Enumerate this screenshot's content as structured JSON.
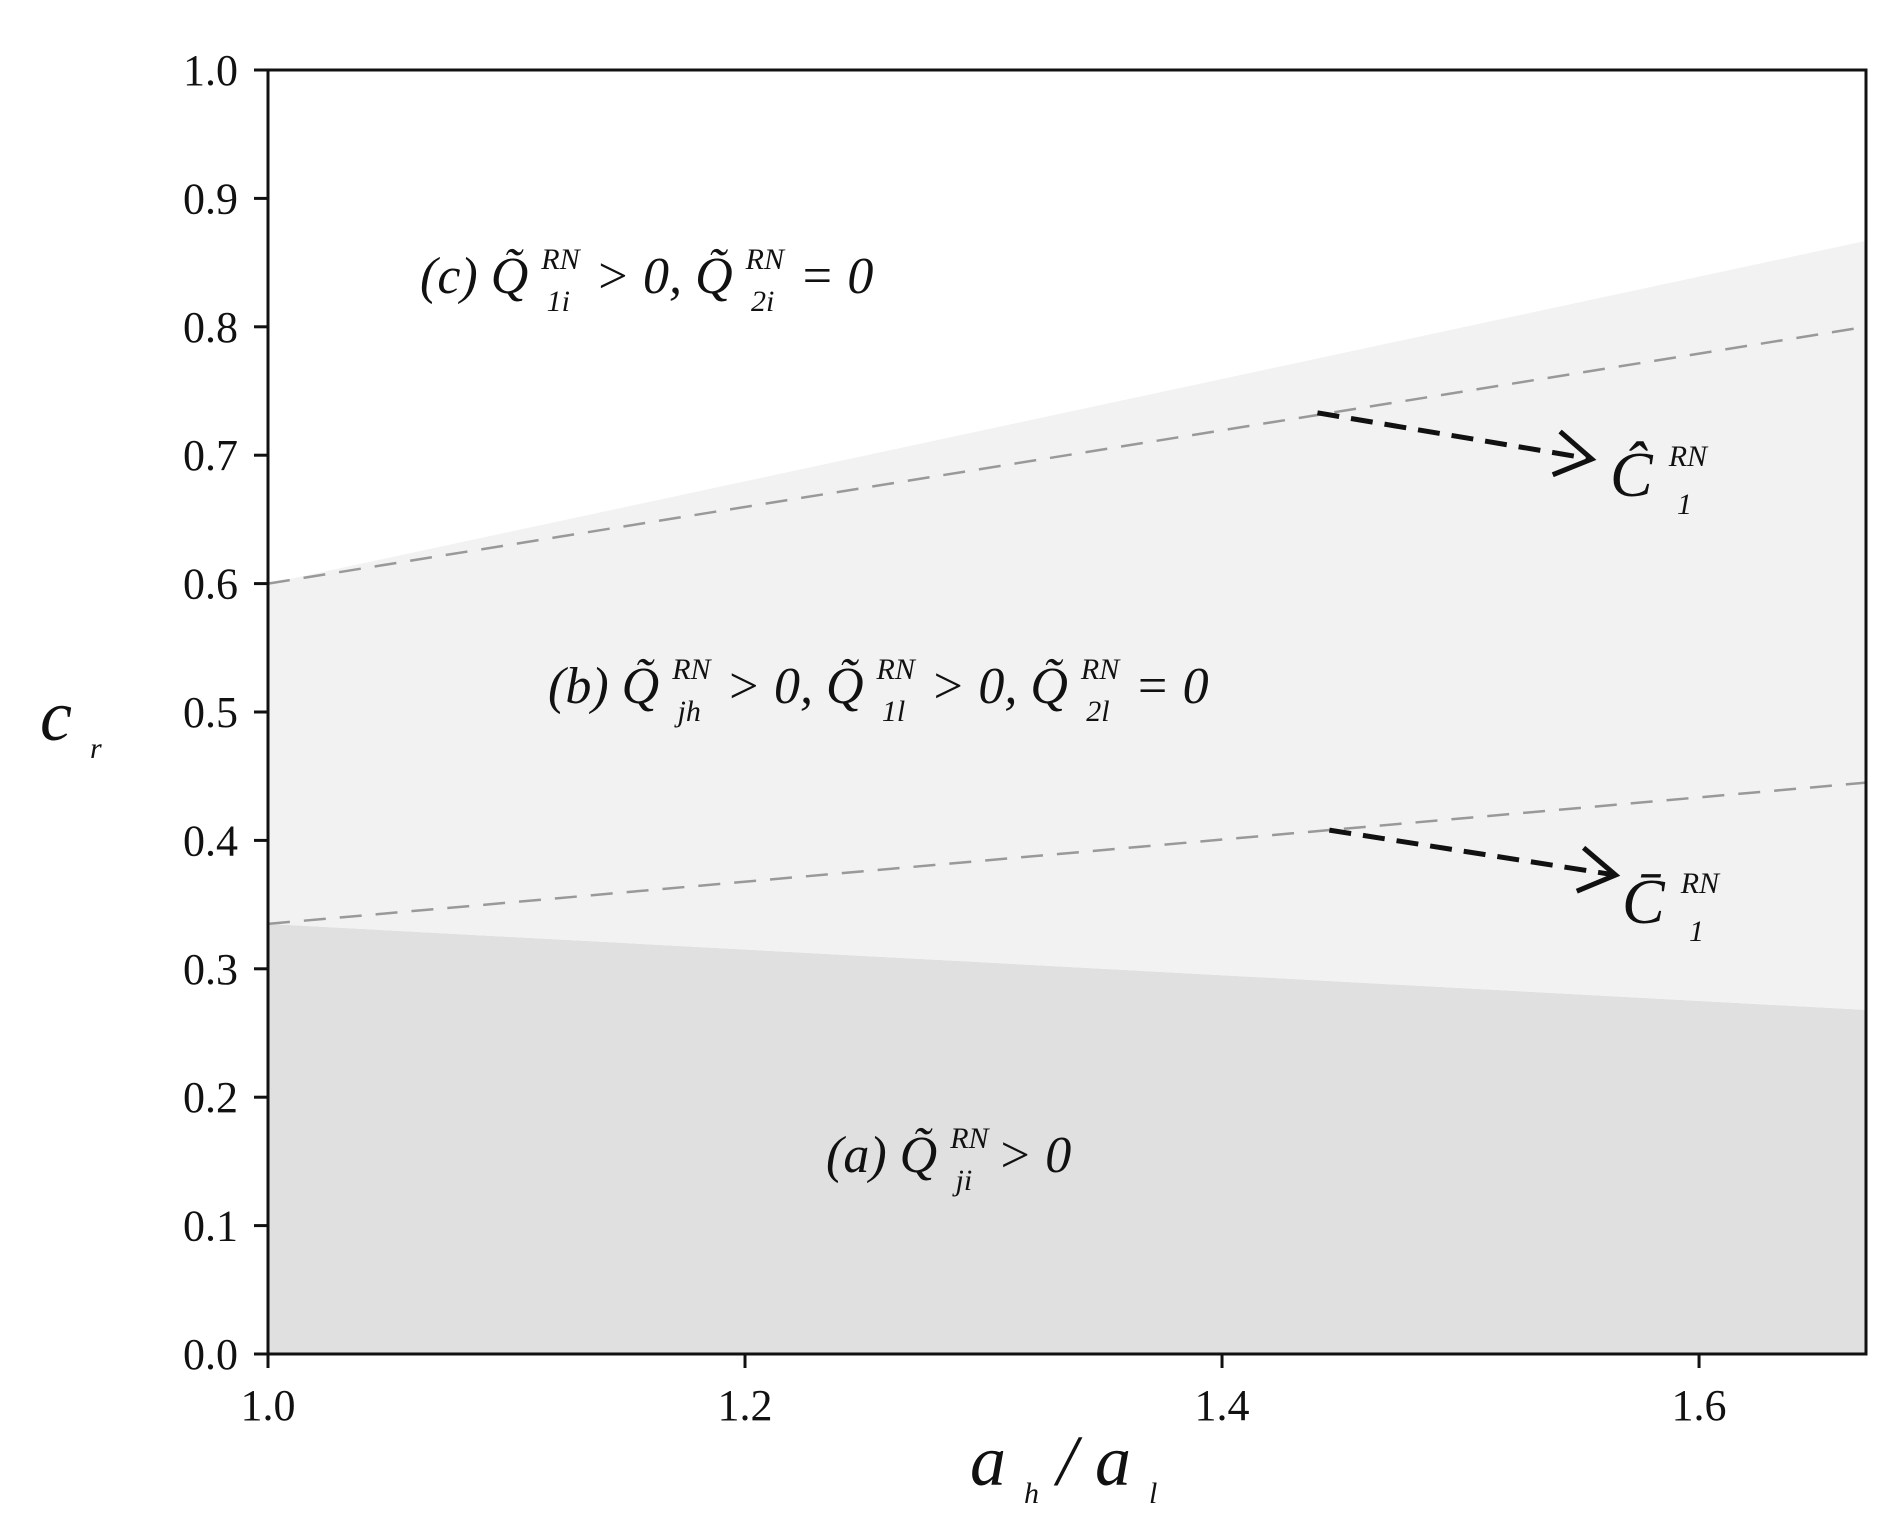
{
  "chart_data": {
    "type": "area",
    "xlabel": "a_h/a_l",
    "ylabel": "c_r",
    "xlim": [
      1.0,
      1.67
    ],
    "ylim": [
      0.0,
      1.0
    ],
    "xticks": [
      "1.0",
      "1.2",
      "1.4",
      "1.6"
    ],
    "xtick_values": [
      1.0,
      1.2,
      1.4,
      1.6
    ],
    "yticks": [
      "0.0",
      "0.1",
      "0.2",
      "0.3",
      "0.4",
      "0.5",
      "0.6",
      "0.7",
      "0.8",
      "0.9",
      "1.0"
    ],
    "ytick_values": [
      0.0,
      0.1,
      0.2,
      0.3,
      0.4,
      0.5,
      0.6,
      0.7,
      0.8,
      0.9,
      1.0
    ],
    "grid": false,
    "regions": [
      {
        "id": "a",
        "label": "(a)Q̃_ji^RN > 0",
        "color": "#e0e0e0",
        "lower_boundary": {
          "x": [
            1.0,
            1.67
          ],
          "y": [
            0.0,
            0.0
          ]
        },
        "upper_boundary": {
          "x": [
            1.0,
            1.67
          ],
          "y": [
            0.335,
            0.268
          ]
        }
      },
      {
        "id": "b",
        "label": "(b)Q̃_jh^RN > 0, Q̃_1l^RN > 0, Q̃_2l^RN = 0",
        "color": "#f2f2f2",
        "lower_boundary": {
          "x": [
            1.0,
            1.67
          ],
          "y": [
            0.335,
            0.268
          ]
        },
        "upper_boundary": {
          "x": [
            1.0,
            1.67
          ],
          "y": [
            0.6,
            0.867
          ]
        }
      },
      {
        "id": "c",
        "label": "(c)Q̃_1i^RN > 0, Q̃_2i^RN = 0",
        "color": "#ffffff",
        "lower_boundary": {
          "x": [
            1.0,
            1.67
          ],
          "y": [
            0.6,
            0.867
          ]
        },
        "upper_boundary": {
          "x": [
            1.0,
            1.67
          ],
          "y": [
            1.0,
            1.0
          ]
        }
      }
    ],
    "series": [
      {
        "name": "Ĉ_1^RN",
        "style": "dashed",
        "color": "#999999",
        "x": [
          1.0,
          1.67
        ],
        "y": [
          0.6,
          0.8
        ]
      },
      {
        "name": "C̄_1^RN",
        "style": "dashed",
        "color": "#999999",
        "x": [
          1.0,
          1.67
        ],
        "y": [
          0.335,
          0.445
        ]
      }
    ],
    "annotations": [
      {
        "text": "Ĉ_1^RN",
        "arrow_from": [
          1.44,
          0.733
        ],
        "arrow_to": [
          1.555,
          0.697
        ]
      },
      {
        "text": "C̄_1^RN",
        "arrow_from": [
          1.445,
          0.408
        ],
        "arrow_to": [
          1.565,
          0.373
        ]
      }
    ]
  },
  "labels": {
    "xlabel_base": "a",
    "xlabel_sub1": "h",
    "xlabel_slash": "/",
    "xlabel_base2": "a",
    "xlabel_sub2": "l",
    "ylabel_base": "c",
    "ylabel_sub": "r",
    "region_a": {
      "prefix": "(a)",
      "q": "Q̃",
      "sub": "ji",
      "sup": "RN",
      "rest": " > 0"
    },
    "region_b": {
      "prefix": "(b)",
      "q1": "Q̃",
      "sub1": "jh",
      "sup1": "RN",
      "mid1": " > 0,",
      "q2": "Q̃",
      "sub2": "1l",
      "sup2": "RN",
      "mid2": " > 0,",
      "q3": "Q̃",
      "sub3": "2l",
      "sup3": "RN",
      "rest": " = 0"
    },
    "region_c": {
      "prefix": "(c)",
      "q1": "Q̃",
      "sub1": "1i",
      "sup1": "RN",
      "mid1": " > 0,",
      "q2": "Q̃",
      "sub2": "2i",
      "sup2": "RN",
      "rest": " = 0"
    },
    "curve_hat": {
      "base": "Ĉ",
      "sub": "1",
      "sup": "RN"
    },
    "curve_bar": {
      "base": "C̄",
      "sub": "1",
      "sup": "RN"
    }
  }
}
